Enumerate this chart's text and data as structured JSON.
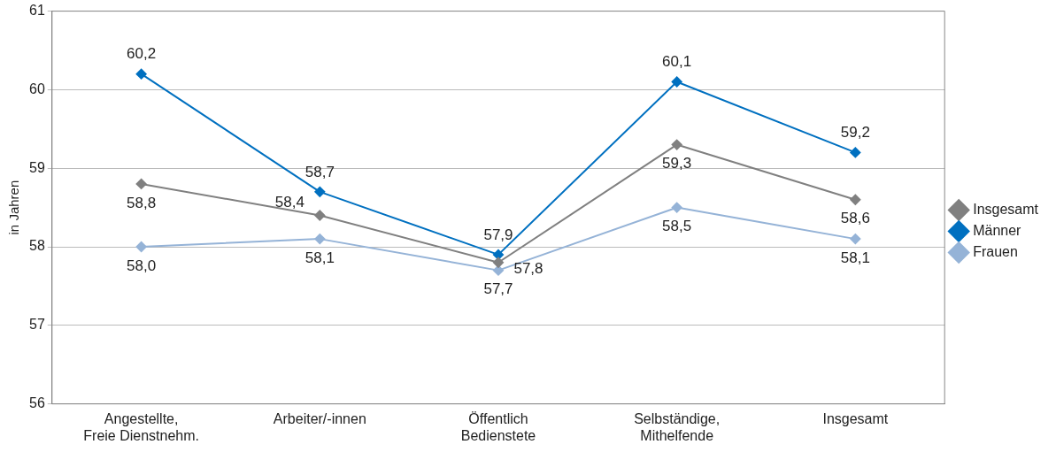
{
  "chart_data": {
    "type": "line",
    "ylabel": "in Jahren",
    "categories": [
      "Angestellte,\nFreie Dienstnehm.",
      "Arbeiter/-innen",
      "Öffentlich\nBedienstete",
      "Selbständige,\nMithelfende",
      "Insgesamt"
    ],
    "series": [
      {
        "name": "Insgesamt",
        "color": "#808080",
        "values": [
          58.8,
          58.4,
          57.8,
          59.3,
          58.6
        ],
        "value_labels": [
          "58,8",
          "58,4",
          "57,8",
          "59,3",
          "58,6"
        ]
      },
      {
        "name": "Männer",
        "color": "#0070c0",
        "values": [
          60.2,
          58.7,
          57.9,
          60.1,
          59.2
        ],
        "value_labels": [
          "60,2",
          "58,7",
          "57,9",
          "60,1",
          "59,2"
        ]
      },
      {
        "name": "Frauen",
        "color": "#95b3d7",
        "values": [
          58.0,
          58.1,
          57.7,
          58.5,
          58.1
        ],
        "value_labels": [
          "58,0",
          "58,1",
          "57,7",
          "58,5",
          "58,1"
        ]
      }
    ],
    "ylim": [
      56,
      61
    ],
    "yticks": [
      56,
      57,
      58,
      59,
      60,
      61
    ],
    "grid": "y",
    "legend": "right",
    "marker": "diamond",
    "line_style": "solid"
  }
}
